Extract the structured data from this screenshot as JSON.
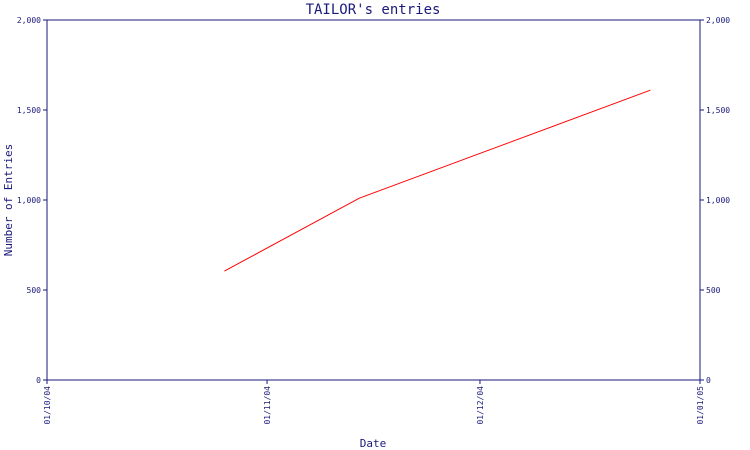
{
  "chart_data": {
    "type": "line",
    "title": "TAILOR's entries",
    "xlabel": "Date",
    "ylabel": "Number of Entries",
    "ylim": [
      0,
      2000
    ],
    "y_ticks": [
      0,
      500,
      1000,
      1500,
      2000
    ],
    "y_tick_labels": [
      "0",
      "500",
      "1,000",
      "1,500",
      "2,000"
    ],
    "x_range": [
      "2004-10-01",
      "2005-01-01"
    ],
    "x_ticks": [
      "2004-10-01",
      "2004-11-01",
      "2004-12-01",
      "2005-01-01"
    ],
    "x_tick_labels": [
      "01/10/04",
      "01/11/04",
      "01/12/04",
      "01/01/05"
    ],
    "grid": false,
    "series": [
      {
        "x": [
          "2004-10-26",
          "2004-11-14",
          "2004-12-25"
        ],
        "values": [
          605,
          1010,
          1610
        ]
      }
    ],
    "colors": {
      "line": "#ff0000",
      "axes": "#1a1a7a",
      "text": "#1a1a7a"
    }
  }
}
